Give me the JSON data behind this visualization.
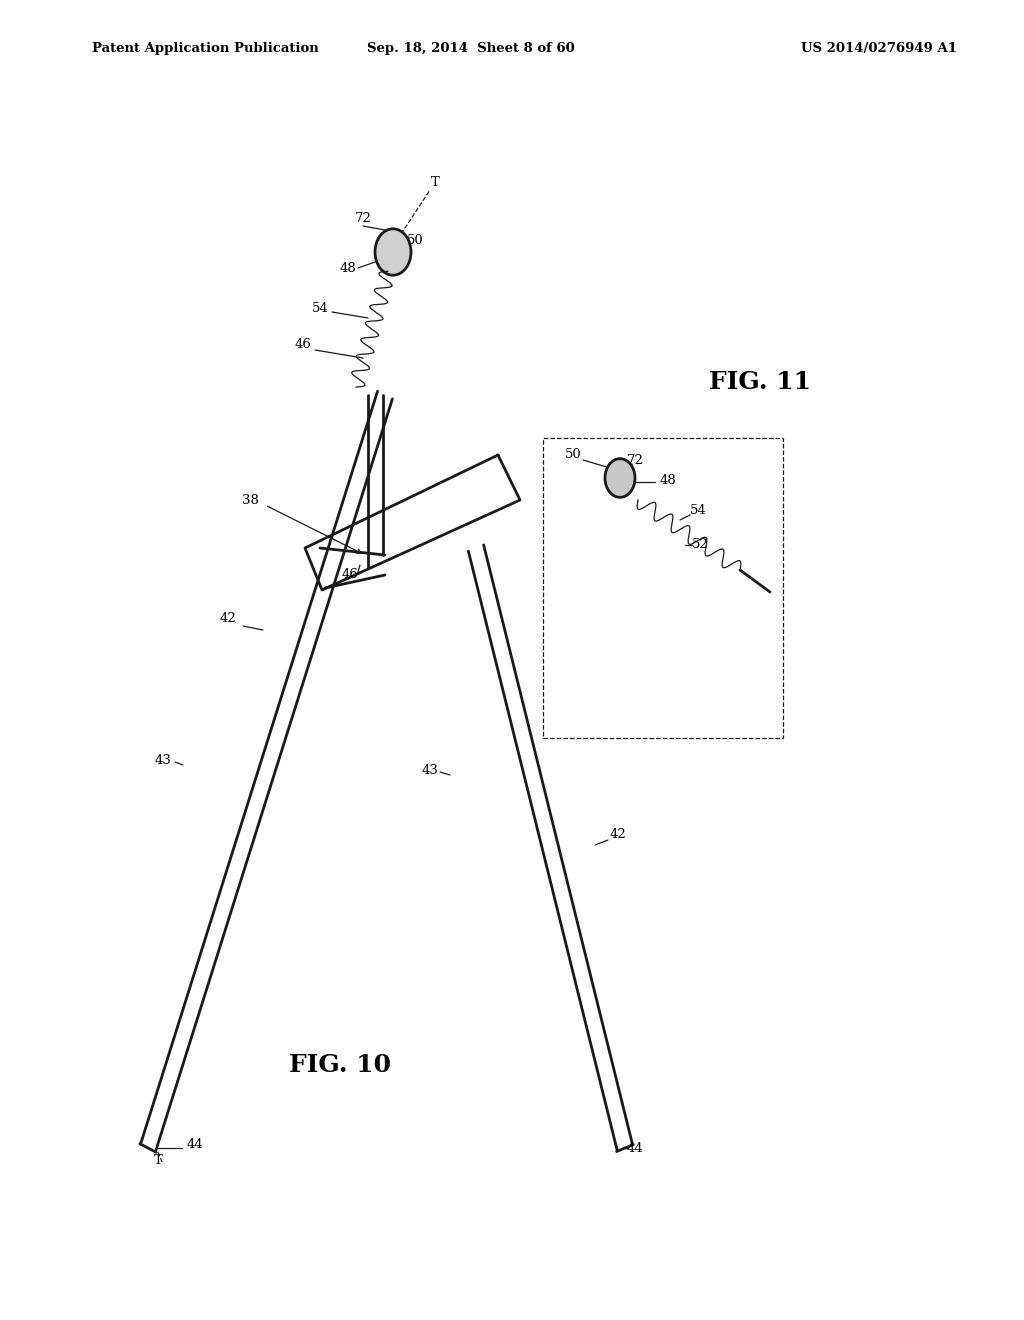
{
  "background_color": "#ffffff",
  "line_color": "#1a1a1a",
  "header_left": "Patent Application Publication",
  "header_center": "Sep. 18, 2014  Sheet 8 of 60",
  "header_right": "US 2014/0276949 A1",
  "fig10_label": "FIG. 10",
  "fig11_label": "FIG. 11"
}
